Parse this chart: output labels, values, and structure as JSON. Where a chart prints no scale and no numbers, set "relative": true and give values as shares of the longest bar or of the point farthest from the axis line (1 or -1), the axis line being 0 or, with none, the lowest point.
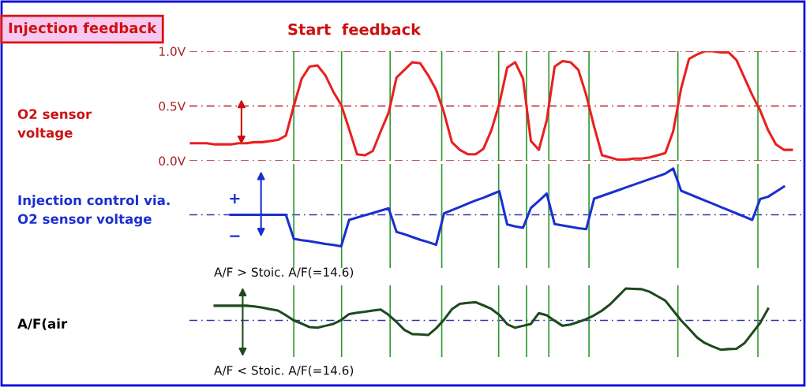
{
  "chart_data": [
    {
      "type": "line",
      "title": "Injection feedback",
      "ylabel": "O2 sensor\nvoltage",
      "annotations": [
        "Start  feedback"
      ],
      "tick_labels": "y",
      "grid": "x",
      "line_style": "solid",
      "categories": [
        null,
        null,
        null,
        null,
        null,
        null,
        null,
        null,
        null,
        null,
        null,
        null,
        null,
        null,
        null,
        null,
        null,
        null,
        null,
        null,
        null,
        null,
        null,
        null,
        null,
        null,
        null,
        null,
        null,
        null,
        null,
        null,
        null,
        null,
        null,
        null,
        null,
        null,
        null,
        null,
        null,
        null,
        null,
        null,
        null,
        null,
        null,
        null,
        null,
        null,
        null,
        null,
        null,
        null,
        null,
        null,
        null,
        null,
        null,
        null,
        null,
        null,
        null,
        null,
        null,
        null,
        null,
        null,
        null,
        null,
        null,
        null,
        null,
        null,
        null,
        null,
        null,
        null
      ],
      "ylim": [
        0,
        1.0
      ],
      "yticks": [
        {
          "value": 0,
          "label": "0.0V"
        },
        {
          "value": 0.5,
          "label": "0.5V"
        },
        {
          "value": 1.0,
          "label": "1.0V"
        }
      ],
      "series": [
        {
          "color": "#e82020",
          "values": [
            0.16,
            0.16,
            0.16,
            0.15,
            0.15,
            0.15,
            0.16,
            0.16,
            0.17,
            0.17,
            0.18,
            0.19,
            0.23,
            0.5,
            0.75,
            0.86,
            0.87,
            0.78,
            0.63,
            0.51,
            0.29,
            0.06,
            0.05,
            0.09,
            0.27,
            0.44,
            0.76,
            0.83,
            0.9,
            0.89,
            0.78,
            0.65,
            0.44,
            0.17,
            0.1,
            0.06,
            0.06,
            0.11,
            0.28,
            0.52,
            0.85,
            0.9,
            0.75,
            0.18,
            0.1,
            0.37,
            0.86,
            0.91,
            0.9,
            0.83,
            0.6,
            0.31,
            0.05,
            0.03,
            0.01,
            0.01,
            0.02,
            0.02,
            0.03,
            0.05,
            0.07,
            0.27,
            0.66,
            0.93,
            0.97,
            1.0,
            1.0,
            0.99,
            0.99,
            0.92,
            0.76,
            0.6,
            0.46,
            0.28,
            0.15,
            0.1,
            0.1,
            null
          ]
        }
      ],
      "ref_lines": [
        {
          "axis": "y",
          "value": 0,
          "color": "#aa2222",
          "line_style": "dashed"
        },
        {
          "axis": "y",
          "value": 0.5,
          "color": "#aa2222",
          "line_style": "dashed"
        },
        {
          "axis": "y",
          "value": 1.0,
          "color": "#aa2222",
          "line_style": "dashed"
        }
      ]
    },
    {
      "type": "line",
      "ylabel": "Injection control via.\nO2 sensor voltage",
      "annotations": [
        "+",
        "−"
      ],
      "relative": true,
      "tick_labels": false,
      "grid": "x",
      "line_style": "solid",
      "categories": [
        null,
        null,
        null,
        null,
        null,
        null,
        null,
        null,
        null,
        null,
        null,
        null,
        null,
        null,
        null,
        null,
        null,
        null,
        null,
        null,
        null,
        null,
        null,
        null,
        null,
        null,
        null,
        null,
        null,
        null,
        null,
        null,
        null,
        null,
        null,
        null,
        null,
        null,
        null,
        null,
        null,
        null,
        null,
        null,
        null,
        null,
        null,
        null,
        null,
        null,
        null,
        null,
        null,
        null,
        null,
        null,
        null,
        null,
        null,
        null,
        null,
        null,
        null,
        null,
        null,
        null,
        null,
        null,
        null,
        null,
        null,
        null,
        null,
        null,
        null,
        null,
        null,
        null
      ],
      "series": [
        {
          "color": "#1a2fd0",
          "values": [
            null,
            null,
            null,
            null,
            null,
            0,
            0,
            0,
            0,
            0,
            0,
            0,
            0,
            -0.52,
            -0.55,
            -0.57,
            -0.6,
            -0.63,
            -0.65,
            -0.68,
            -0.11,
            -0.06,
            -0.01,
            0.04,
            0.09,
            0.14,
            -0.37,
            -0.42,
            -0.48,
            -0.54,
            -0.59,
            -0.65,
            0.03,
            0.1,
            0.17,
            0.24,
            0.31,
            0.37,
            0.44,
            0.51,
            -0.21,
            -0.25,
            -0.28,
            0.15,
            0.3,
            0.46,
            -0.2,
            -0.23,
            -0.26,
            -0.29,
            -0.31,
            0.35,
            0.41,
            0.47,
            0.53,
            0.59,
            0.65,
            0.71,
            0.77,
            0.83,
            0.89,
            1.0,
            0.52,
            0.45,
            0.38,
            0.31,
            0.24,
            0.17,
            0.1,
            0.03,
            -0.04,
            -0.11,
            0.34,
            0.39,
            0.5,
            0.61,
            null,
            null
          ]
        }
      ],
      "ref_lines": [
        {
          "axis": "y",
          "value": 0,
          "color": "#3333aa",
          "line_style": "dashed"
        }
      ]
    },
    {
      "type": "line",
      "ylabel": "A/F(air",
      "annotations": [
        "A/F > Stoic. A/F(=14.6)",
        "A/F < Stoic. A/F(=14.6)"
      ],
      "relative": true,
      "tick_labels": false,
      "grid": "x",
      "line_style": "solid",
      "categories": [
        null,
        null,
        null,
        null,
        null,
        null,
        null,
        null,
        null,
        null,
        null,
        null,
        null,
        null,
        null,
        null,
        null,
        null,
        null,
        null,
        null,
        null,
        null,
        null,
        null,
        null,
        null,
        null,
        null,
        null,
        null,
        null,
        null,
        null,
        null,
        null,
        null,
        null,
        null,
        null,
        null,
        null,
        null,
        null,
        null,
        null,
        null,
        null,
        null,
        null,
        null,
        null,
        null,
        null,
        null,
        null,
        null,
        null,
        null,
        null,
        null,
        null,
        null,
        null,
        null,
        null,
        null,
        null,
        null,
        null,
        null,
        null,
        null,
        null,
        null,
        null,
        null,
        null
      ],
      "series": [
        {
          "color": "#1e4a1e",
          "values": [
            null,
            null,
            null,
            0.46,
            0.46,
            0.46,
            0.46,
            0.46,
            0.44,
            0.4,
            0.35,
            0.31,
            0.16,
            0,
            -0.1,
            -0.21,
            -0.23,
            -0.17,
            -0.11,
            0.01,
            0.2,
            0.24,
            0.27,
            0.31,
            0.34,
            0.17,
            -0.05,
            -0.3,
            -0.43,
            -0.44,
            -0.46,
            -0.25,
            0.02,
            0.35,
            0.52,
            0.55,
            0.57,
            0.47,
            0.36,
            0.17,
            -0.12,
            -0.23,
            -0.17,
            -0.11,
            0.23,
            0.16,
            -0.01,
            -0.17,
            -0.13,
            -0.05,
            0.04,
            0.16,
            0.31,
            0.5,
            0.75,
            1.0,
            0.99,
            0.98,
            0.9,
            0.76,
            0.62,
            0.31,
            0,
            -0.26,
            -0.53,
            -0.71,
            -0.82,
            -0.92,
            -0.9,
            -0.89,
            -0.72,
            -0.4,
            -0.08,
            0.36,
            null,
            null,
            null,
            null
          ]
        }
      ],
      "ref_lines": [
        {
          "axis": "y",
          "value": 0,
          "color": "#3333aa",
          "line_style": "dashed"
        }
      ]
    }
  ]
}
